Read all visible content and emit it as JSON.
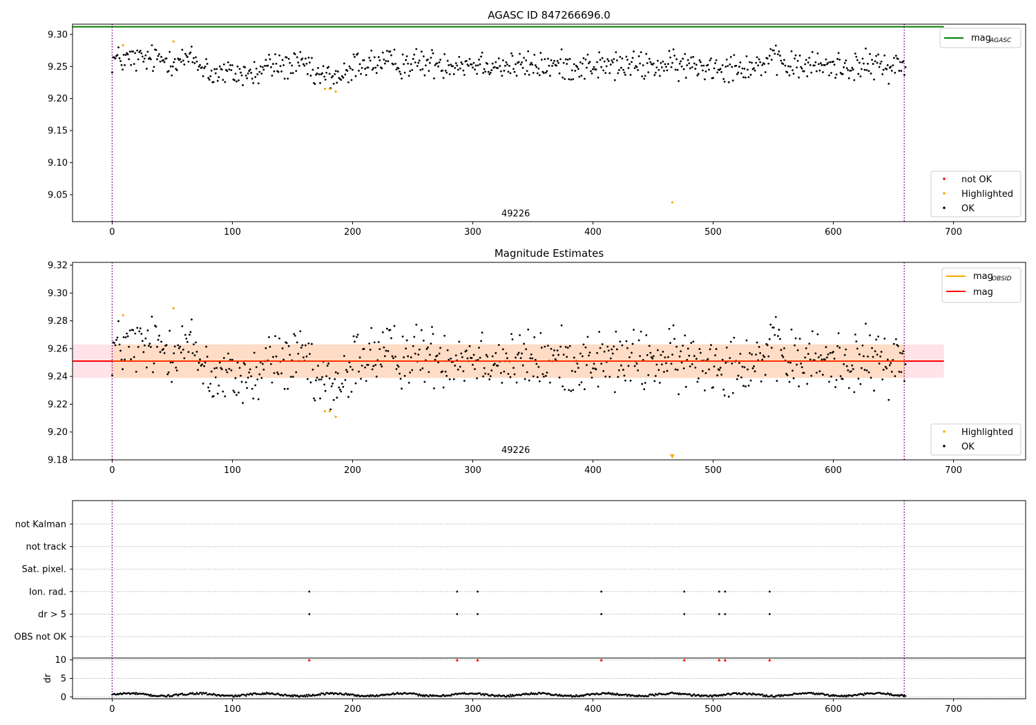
{
  "chart_data": [
    {
      "type": "scatter",
      "title": "AGASC ID 847266696.0",
      "xlabel": "",
      "ylabel": "",
      "xlim": [
        -33,
        760
      ],
      "ylim": [
        9.008,
        9.316
      ],
      "xticks": [
        0,
        100,
        200,
        300,
        400,
        500,
        600,
        700
      ],
      "yticks": [
        9.05,
        9.1,
        9.15,
        9.2,
        9.25,
        9.3
      ],
      "hlines": [
        {
          "name": "mag_AGASC",
          "y": 9.312,
          "color": "#008000"
        }
      ],
      "vlines": [
        {
          "x": 0,
          "color": "#800080",
          "style": "dotted"
        },
        {
          "x": 659,
          "color": "#800080",
          "style": "dotted"
        }
      ],
      "annotations": [
        {
          "text": "49226",
          "x": 330,
          "y": 9.018
        }
      ],
      "legend_lines": {
        "placement": "top-right",
        "entries": [
          {
            "label": "mag",
            "sub": "AGASC",
            "color": "#008000"
          }
        ]
      },
      "legend_points": {
        "placement": "bottom-right",
        "entries": [
          {
            "label": "not OK",
            "color": "#ff0000"
          },
          {
            "label": "Highlighted",
            "color": "#ffa500"
          },
          {
            "label": "OK",
            "color": "#000000"
          }
        ]
      },
      "highlighted": {
        "x": [
          9,
          51,
          177,
          181,
          186,
          466
        ],
        "y": [
          9.283,
          9.289,
          9.215,
          9.215,
          9.211,
          9.038
        ]
      },
      "ok_series": {
        "x_start": 0,
        "x_end": 660,
        "count": 760,
        "mean": 9.251
      }
    },
    {
      "type": "scatter",
      "title": "Magnitude Estimates",
      "xlabel": "",
      "ylabel": "",
      "xlim": [
        -33,
        760
      ],
      "ylim": [
        9.18,
        9.322
      ],
      "xticks": [
        0,
        100,
        200,
        300,
        400,
        500,
        600,
        700
      ],
      "yticks": [
        9.18,
        9.2,
        9.22,
        9.24,
        9.26,
        9.28,
        9.3,
        9.32
      ],
      "bands": [
        {
          "x": [
            -33,
            692
          ],
          "y": [
            9.239,
            9.263
          ],
          "color": "#ffc0cb"
        },
        {
          "x": [
            0,
            660
          ],
          "y": [
            9.239,
            9.263
          ],
          "color": "#ffdab9"
        }
      ],
      "hlines": [
        {
          "name": "mag",
          "y": 9.251,
          "color": "#ff0000"
        }
      ],
      "vlines": [
        {
          "x": 0,
          "color": "#800080",
          "style": "dotted"
        },
        {
          "x": 659,
          "color": "#800080",
          "style": "dotted"
        }
      ],
      "annotations": [
        {
          "text": "49226",
          "x": 330,
          "y": 9.184
        }
      ],
      "legend_lines": {
        "placement": "top-right",
        "entries": [
          {
            "label": "mag",
            "sub": "OBSID",
            "color": "#ffa500"
          },
          {
            "label": "mag",
            "sub": "",
            "color": "#ff0000"
          }
        ]
      },
      "legend_points": {
        "placement": "bottom-right",
        "entries": [
          {
            "label": "Highlighted",
            "color": "#ffa500"
          },
          {
            "label": "OK",
            "color": "#000000"
          }
        ]
      },
      "highlighted": {
        "x": [
          9,
          51,
          177,
          181,
          186
        ],
        "y": [
          9.284,
          9.289,
          9.215,
          9.215,
          9.211
        ]
      },
      "offscale_marker": {
        "x": 466,
        "color": "#ffa500"
      },
      "ok_series": {
        "x_start": 0,
        "x_end": 660,
        "count": 760,
        "mean": 9.251
      }
    },
    {
      "type": "scatter",
      "title": "",
      "xlim": [
        -33,
        760
      ],
      "xticks": [
        0,
        100,
        200,
        300,
        400,
        500,
        600,
        700
      ],
      "flag_rows": [
        "not Kalman",
        "not track",
        "Sat. pixel.",
        "Ion. rad.",
        "dr > 5",
        "OBS not OK"
      ],
      "flag_events": {
        "Ion. rad.": [
          164,
          287,
          304,
          407,
          476,
          505,
          510,
          547
        ],
        "dr > 5": [
          164,
          287,
          304,
          407,
          476,
          505,
          510,
          547
        ]
      },
      "vlines": [
        {
          "x": 0,
          "color": "#800080",
          "style": "dotted"
        },
        {
          "x": 659,
          "color": "#800080",
          "style": "dotted"
        }
      ]
    },
    {
      "type": "scatter",
      "title": "",
      "ylabel": "dr",
      "xlim": [
        -33,
        760
      ],
      "ylim": [
        -0.5,
        10.5
      ],
      "yticks": [
        0,
        5,
        10
      ],
      "xticks": [
        0,
        100,
        200,
        300,
        400,
        500,
        600,
        700
      ],
      "high_dr": {
        "x": [
          164,
          287,
          304,
          407,
          476,
          505,
          510,
          547
        ],
        "y": [
          10,
          10,
          10,
          10,
          10,
          10,
          10,
          10
        ],
        "color": "#ff0000"
      },
      "dr_series": {
        "x_start": 0,
        "x_end": 660,
        "count": 760,
        "mean": 0.6
      },
      "vlines": [
        {
          "x": 0,
          "color": "#800080",
          "style": "dotted"
        },
        {
          "x": 659,
          "color": "#800080",
          "style": "dotted"
        }
      ]
    }
  ]
}
